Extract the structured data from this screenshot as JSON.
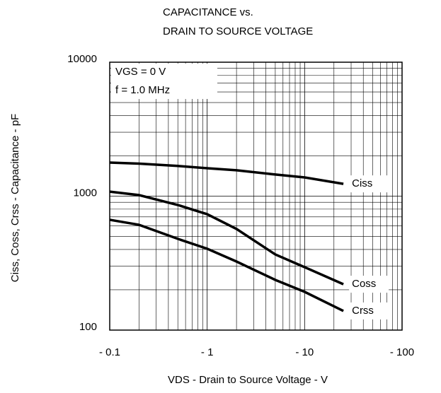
{
  "chart_data": {
    "type": "line",
    "title": [
      "CAPACITANCE vs.",
      "DRAIN TO SOURCE VOLTAGE"
    ],
    "x_label": "VDS - Drain to Source Voltage - V",
    "y_label": "Ciss, Coss, Crss - Capacitance - pF",
    "annotations": [
      "VGS = 0 V",
      "f = 1.0 MHz"
    ],
    "x_log": true,
    "y_log": true,
    "grid": true,
    "minor_grid": true,
    "xlim": [
      0.1,
      100
    ],
    "ylim": [
      100,
      10000
    ],
    "xticks": [
      {
        "value": 0.1,
        "label": "- 0.1"
      },
      {
        "value": 1,
        "label": "- 1"
      },
      {
        "value": 10,
        "label": "- 10"
      },
      {
        "value": 100,
        "label": "- 100"
      }
    ],
    "yticks": [
      100,
      1000,
      10000
    ],
    "x": [
      0.1,
      0.2,
      0.5,
      1,
      2,
      5,
      10,
      25
    ],
    "series": [
      {
        "name": "Ciss",
        "color": "#000000",
        "values": [
          1780,
          1750,
          1680,
          1615,
          1560,
          1450,
          1380,
          1235
        ]
      },
      {
        "name": "Coss",
        "color": "#000000",
        "values": [
          1081,
          1018,
          859,
          733,
          569,
          367,
          295,
          220
        ]
      },
      {
        "name": "Crss",
        "color": "#000000",
        "values": [
          666,
          611,
          480,
          405,
          325,
          237,
          193,
          139
        ]
      }
    ]
  }
}
